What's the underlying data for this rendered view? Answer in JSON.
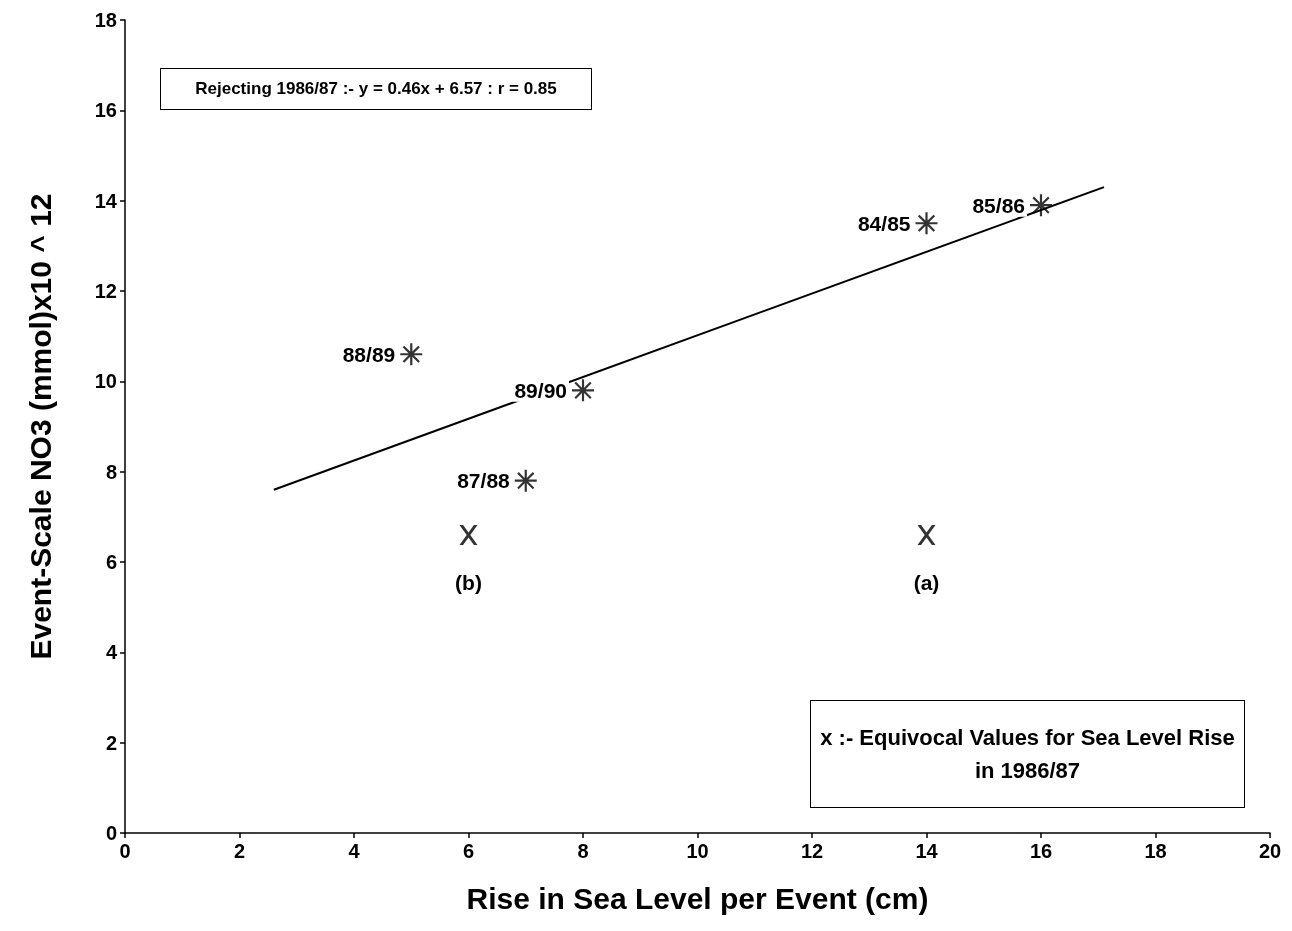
{
  "chart_data": {
    "type": "scatter",
    "xlabel": "Rise in Sea Level per Event (cm)",
    "ylabel": "Event-Scale NO3 (mmol)x10 ^ 12",
    "xlim": [
      0,
      20
    ],
    "xticks": [
      0,
      2,
      4,
      6,
      8,
      10,
      12,
      14,
      16,
      18,
      20
    ],
    "ylim": [
      0,
      18
    ],
    "yticks": [
      0,
      2,
      4,
      6,
      8,
      10,
      12,
      14,
      16,
      18
    ],
    "grid": false,
    "series": [
      {
        "color": "#000000",
        "marker": "star",
        "x": [
          14,
          16,
          5,
          7,
          8
        ],
        "values": [
          13.5,
          13.9,
          10.6,
          7.8,
          9.8
        ]
      },
      {
        "color": "#000000",
        "marker": "cross",
        "x": [
          6,
          14
        ],
        "values": [
          6.6,
          6.6
        ]
      },
      {
        "type": "line",
        "color": "#000000",
        "marker": "none",
        "x": [
          2.6,
          17.1
        ],
        "values": [
          7.6,
          14.3
        ]
      }
    ],
    "annotations": [
      "Rejecting 1986/87 :- y = 0.46x + 6.57 : r = 0.85",
      "x :-  Equivocal Values for Sea Level Rise in 1986/87",
      {
        "text": "84/85",
        "x": 14,
        "y": 13.5
      },
      {
        "text": "85/86",
        "x": 16,
        "y": 13.9
      },
      {
        "text": "88/89",
        "x": 5,
        "y": 10.6
      },
      {
        "text": "89/90",
        "x": 8,
        "y": 9.8
      },
      {
        "text": "87/88",
        "x": 7,
        "y": 7.8
      },
      {
        "text": "(b)",
        "x": 6,
        "y": 6.6
      },
      {
        "text": "(a)",
        "x": 14,
        "y": 6.6
      }
    ]
  }
}
